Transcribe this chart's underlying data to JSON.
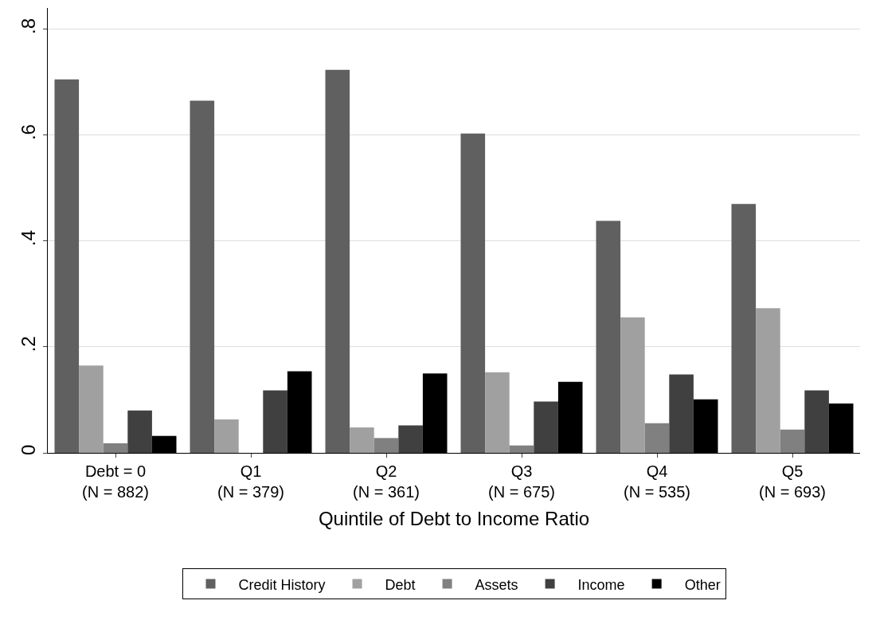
{
  "chart_data": {
    "type": "bar",
    "xlabel": "Quintile of Debt to Income Ratio",
    "categories": [
      "Debt = 0\n(N = 882)",
      "Q1\n(N = 379)",
      "Q2\n(N = 361)",
      "Q3\n(N = 675)",
      "Q4\n(N = 535)",
      "Q5\n(N = 693)"
    ],
    "series": [
      {
        "name": "Credit History",
        "color": "#606060",
        "values": [
          0.705,
          0.665,
          0.723,
          0.603,
          0.438,
          0.47
        ]
      },
      {
        "name": "Debt",
        "color": "#a0a0a0",
        "values": [
          0.165,
          0.063,
          0.048,
          0.152,
          0.256,
          0.273
        ]
      },
      {
        "name": "Assets",
        "color": "#808080",
        "values": [
          0.018,
          0,
          0.028,
          0.014,
          0.056,
          0.044
        ]
      },
      {
        "name": "Income",
        "color": "#404040",
        "values": [
          0.08,
          0.118,
          0.052,
          0.097,
          0.148,
          0.118
        ]
      },
      {
        "name": "Other",
        "color": "#000000",
        "values": [
          0.032,
          0.154,
          0.15,
          0.134,
          0.101,
          0.093
        ]
      }
    ],
    "ylim": [
      0,
      0.84
    ],
    "yticks": [
      {
        "value": 0,
        "label": "0"
      },
      {
        "value": 0.2,
        "label": ".2"
      },
      {
        "value": 0.4,
        "label": ".4"
      },
      {
        "value": 0.6,
        "label": ".6"
      },
      {
        "value": 0.8,
        "label": ".8"
      }
    ],
    "grid": "y",
    "legend": "bottom"
  }
}
